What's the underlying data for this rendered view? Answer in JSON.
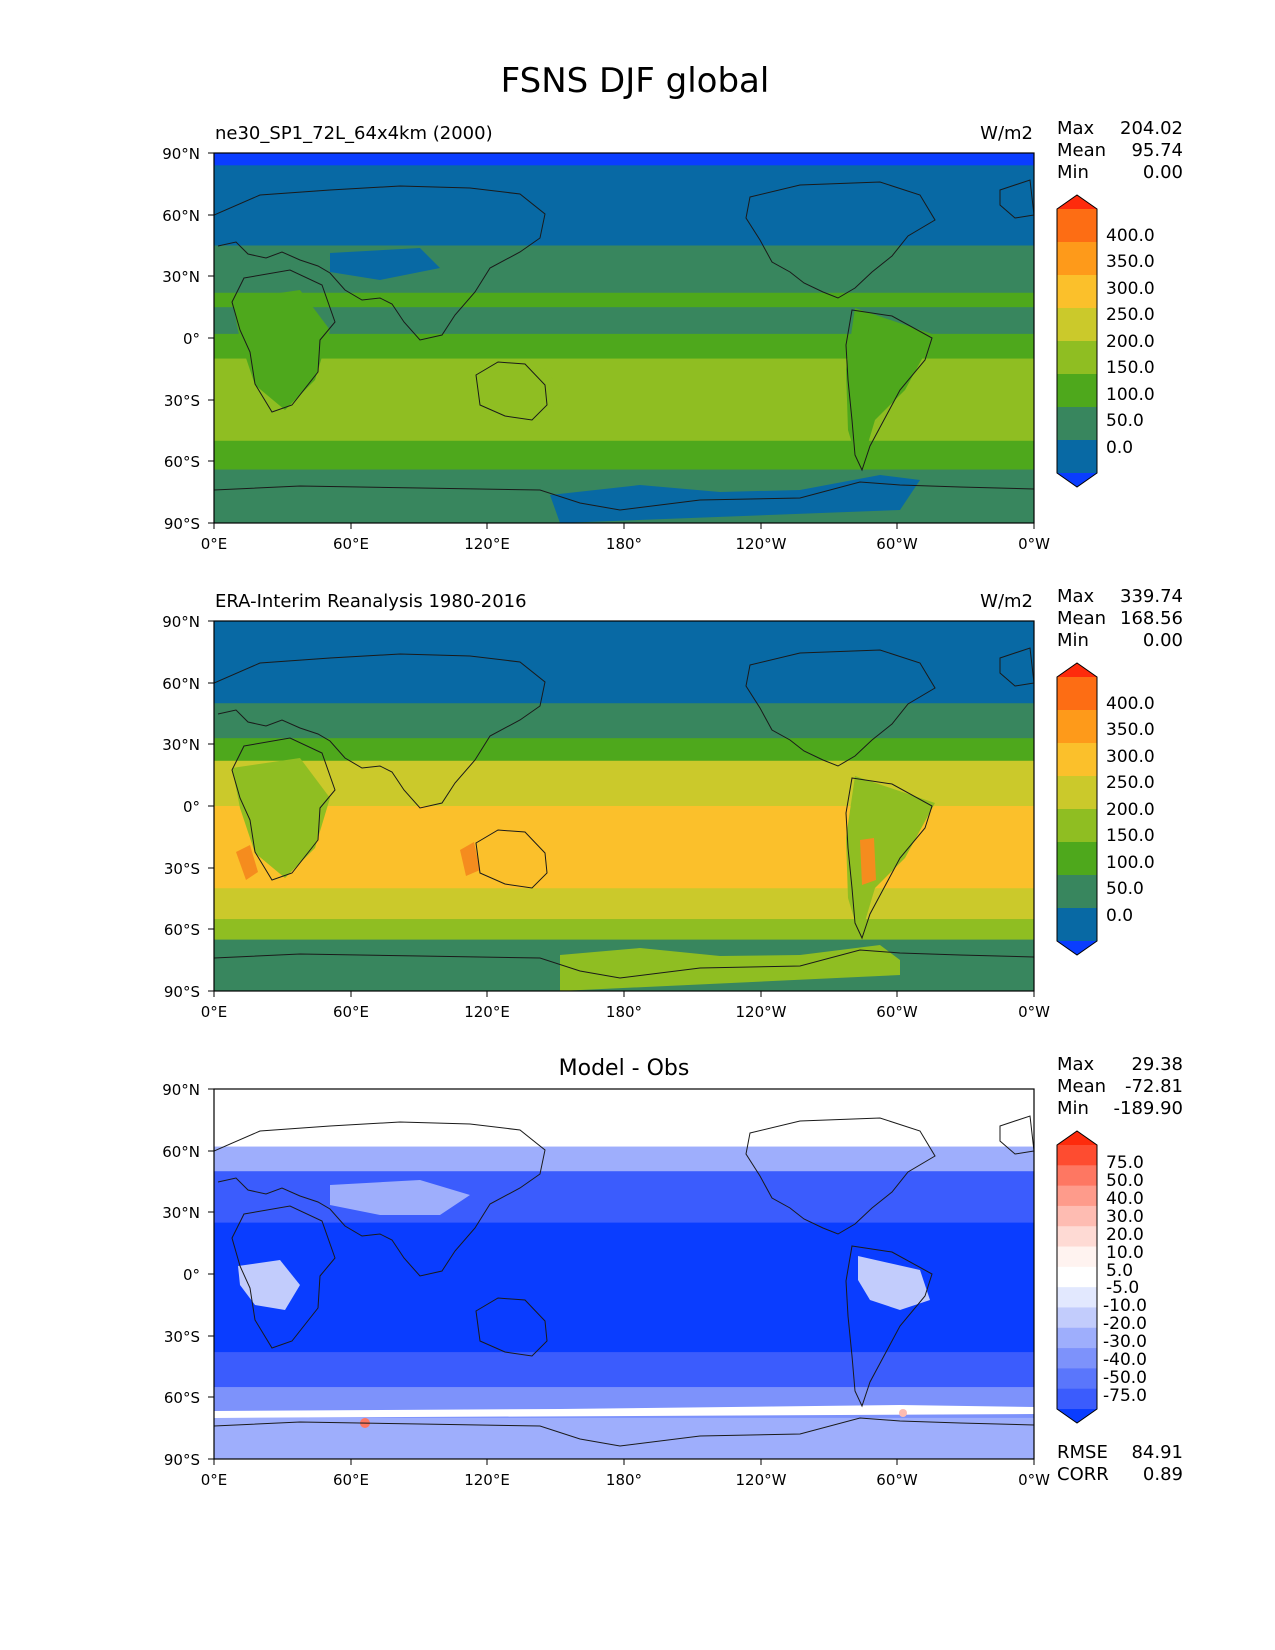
{
  "figure": {
    "title": "FSNS DJF global"
  },
  "colors": {
    "ocean_polar": "#0869a4",
    "ocean_mid": "#38865e",
    "green_dark": "#4ea81c",
    "green_light": "#8fbe22",
    "yellow_olive": "#c9c92a",
    "gold": "#fbbf24",
    "orange": "#f58c1e",
    "coast": "#1a1a1a"
  },
  "chart_data": [
    {
      "type": "heatmap",
      "panel": "test",
      "title_left": "ne30_SP1_72L_64x4km (2000)",
      "title_right": "W/m2",
      "stats": {
        "labels": [
          "Max",
          "Mean",
          "Min"
        ],
        "values": [
          "204.02",
          "95.74",
          "0.00"
        ]
      },
      "x_ticks": [
        "0°E",
        "60°E",
        "120°E",
        "180°",
        "120°W",
        "60°W",
        "0°W"
      ],
      "y_ticks": [
        "90°N",
        "60°N",
        "30°N",
        "0°",
        "30°S",
        "60°S",
        "90°S"
      ],
      "lat_range": [
        -90,
        90
      ],
      "lon_range": [
        0,
        360
      ],
      "colorbar": {
        "labels": [
          "400.0",
          "350.0",
          "300.0",
          "250.0",
          "200.0",
          "150.0",
          "100.0",
          "50.0",
          "0.0"
        ],
        "colors": [
          "#fe2b0c",
          "#fd6d14",
          "#fe9a1a",
          "#fbc02b",
          "#cbc92b",
          "#8fbe22",
          "#4ea81c",
          "#38865e",
          "#0869a4",
          "#0a3dff"
        ]
      },
      "bands": [
        {
          "lat": [
            84,
            90
          ],
          "color": "#0a3dff"
        },
        {
          "lat": [
            45,
            84
          ],
          "color": "#0869a4"
        },
        {
          "lat": [
            22,
            45
          ],
          "color": "#38865e"
        },
        {
          "lat": [
            15,
            22
          ],
          "color": "#4ea81c"
        },
        {
          "lat": [
            2,
            15
          ],
          "color": "#38865e"
        },
        {
          "lat": [
            -10,
            2
          ],
          "color": "#4ea81c"
        },
        {
          "lat": [
            -50,
            -10
          ],
          "color": "#8fbe22"
        },
        {
          "lat": [
            -64,
            -50
          ],
          "color": "#4ea81c"
        },
        {
          "lat": [
            -72,
            -64
          ],
          "color": "#38865e"
        },
        {
          "lat": [
            -90,
            -72
          ],
          "color": "#38865e"
        }
      ]
    },
    {
      "type": "heatmap",
      "panel": "reference",
      "title_left": "ERA-Interim Reanalysis 1980-2016",
      "title_right": "W/m2",
      "stats": {
        "labels": [
          "Max",
          "Mean",
          "Min"
        ],
        "values": [
          "339.74",
          "168.56",
          "0.00"
        ]
      },
      "x_ticks": [
        "0°E",
        "60°E",
        "120°E",
        "180°",
        "120°W",
        "60°W",
        "0°W"
      ],
      "y_ticks": [
        "90°N",
        "60°N",
        "30°N",
        "0°",
        "30°S",
        "60°S",
        "90°S"
      ],
      "lat_range": [
        -90,
        90
      ],
      "lon_range": [
        0,
        360
      ],
      "colorbar": {
        "labels": [
          "400.0",
          "350.0",
          "300.0",
          "250.0",
          "200.0",
          "150.0",
          "100.0",
          "50.0",
          "0.0"
        ],
        "colors": [
          "#fe2b0c",
          "#fd6d14",
          "#fe9a1a",
          "#fbc02b",
          "#cbc92b",
          "#8fbe22",
          "#4ea81c",
          "#38865e",
          "#0869a4",
          "#0a3dff"
        ]
      },
      "bands": [
        {
          "lat": [
            50,
            90
          ],
          "color": "#0869a4"
        },
        {
          "lat": [
            33,
            50
          ],
          "color": "#38865e"
        },
        {
          "lat": [
            22,
            33
          ],
          "color": "#4ea81c"
        },
        {
          "lat": [
            0,
            22
          ],
          "color": "#cbc92b"
        },
        {
          "lat": [
            -40,
            0
          ],
          "color": "#fbc02b"
        },
        {
          "lat": [
            -55,
            -40
          ],
          "color": "#cbc92b"
        },
        {
          "lat": [
            -65,
            -55
          ],
          "color": "#8fbe22"
        },
        {
          "lat": [
            -90,
            -65
          ],
          "color": "#38865e"
        }
      ]
    },
    {
      "type": "heatmap",
      "panel": "difference",
      "title_center": "Model - Obs",
      "stats": {
        "labels": [
          "Max",
          "Mean",
          "Min"
        ],
        "values": [
          "29.38",
          "-72.81",
          "-189.90"
        ]
      },
      "metrics": {
        "labels": [
          "RMSE",
          "CORR"
        ],
        "values": [
          "84.91",
          "0.89"
        ]
      },
      "x_ticks": [
        "0°E",
        "60°E",
        "120°E",
        "180°",
        "120°W",
        "60°W",
        "0°W"
      ],
      "y_ticks": [
        "90°N",
        "60°N",
        "30°N",
        "0°",
        "30°S",
        "60°S",
        "90°S"
      ],
      "lat_range": [
        -90,
        90
      ],
      "lon_range": [
        0,
        360
      ],
      "colorbar": {
        "labels": [
          "75.0",
          "50.0",
          "40.0",
          "30.0",
          "20.0",
          "10.0",
          "5.0",
          "-5.0",
          "-10.0",
          "-20.0",
          "-30.0",
          "-40.0",
          "-50.0",
          "-75.0"
        ],
        "colors": [
          "#fe2b0c",
          "#fe4c30",
          "#fe7762",
          "#fe9b8b",
          "#febcb2",
          "#fedad4",
          "#fff3f0",
          "#ffffff",
          "#e2e8fe",
          "#c2ccfc",
          "#9eaefc",
          "#7d92fb",
          "#5a76fc",
          "#3b5cfd",
          "#0a3dff"
        ]
      },
      "bands": [
        {
          "lat": [
            62,
            90
          ],
          "color": "#ffffff"
        },
        {
          "lat": [
            50,
            62
          ],
          "color": "#9eaefc"
        },
        {
          "lat": [
            25,
            50
          ],
          "color": "#3b5cfd"
        },
        {
          "lat": [
            -38,
            25
          ],
          "color": "#0a3dff"
        },
        {
          "lat": [
            -55,
            -38
          ],
          "color": "#3b5cfd"
        },
        {
          "lat": [
            -70,
            -55
          ],
          "color": "#7d92fb"
        },
        {
          "lat": [
            -90,
            -70
          ],
          "color": "#9eaefc"
        }
      ]
    }
  ]
}
